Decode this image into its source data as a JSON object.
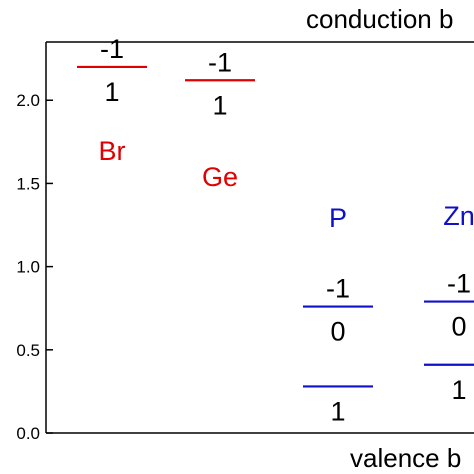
{
  "chart_data": {
    "type": "defect-levels",
    "top_label": "conduction b",
    "bottom_label": "valence b",
    "ylim": [
      0,
      2.35
    ],
    "yticks": [
      {
        "value": 0.0,
        "label": "0.0"
      },
      {
        "value": 0.5,
        "label": "0.5"
      },
      {
        "value": 1.0,
        "label": "1.0"
      },
      {
        "value": 1.5,
        "label": "1.5"
      },
      {
        "value": 2.0,
        "label": "2.0"
      }
    ],
    "colors": {
      "donor": "#e00000",
      "acceptor": "#1010c8",
      "axis": "#000000"
    },
    "defects": [
      {
        "element": "Br",
        "color": "#e00000",
        "levels": [
          {
            "energy": 2.2,
            "upper": "-1",
            "lower": "1"
          }
        ]
      },
      {
        "element": "Ge",
        "color": "#e00000",
        "levels": [
          {
            "energy": 2.12,
            "upper": "-1",
            "lower": "1"
          }
        ]
      },
      {
        "element": "P",
        "color": "#1010c8",
        "levels": [
          {
            "energy": 0.76,
            "upper": "-1",
            "lower": "0"
          },
          {
            "energy": 0.28,
            "upper": "",
            "lower": "1"
          }
        ]
      },
      {
        "element": "Zn",
        "color": "#1010c8",
        "levels": [
          {
            "energy": 0.79,
            "upper": "-1",
            "lower": "0"
          },
          {
            "energy": 0.41,
            "upper": "",
            "lower": "1"
          }
        ]
      }
    ]
  }
}
